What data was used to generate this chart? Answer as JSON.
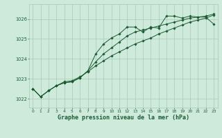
{
  "title": "Graphe pression niveau de la mer (hPa)",
  "bg_color": "#ceeadb",
  "grid_color": "#a8c8b8",
  "line_color": "#1a5c30",
  "x_ticks": [
    0,
    1,
    2,
    3,
    4,
    5,
    6,
    7,
    8,
    9,
    10,
    11,
    12,
    13,
    14,
    15,
    16,
    17,
    18,
    19,
    20,
    21,
    22,
    23
  ],
  "y_ticks": [
    1022,
    1023,
    1024,
    1025,
    1026
  ],
  "ylim": [
    1021.55,
    1026.75
  ],
  "xlim": [
    -0.5,
    23.5
  ],
  "series1": [
    1022.5,
    1022.1,
    1022.4,
    1022.65,
    1022.8,
    1022.85,
    1023.05,
    1023.4,
    1024.25,
    1024.75,
    1025.05,
    1025.25,
    1025.6,
    1025.6,
    1025.35,
    1025.6,
    1025.55,
    1026.15,
    1026.15,
    1026.05,
    1026.15,
    1026.1,
    1026.1,
    1025.75
  ],
  "series2": [
    1022.5,
    1022.1,
    1022.4,
    1022.65,
    1022.8,
    1022.85,
    1023.05,
    1023.4,
    1023.85,
    1024.25,
    1024.55,
    1024.85,
    1025.15,
    1025.35,
    1025.45,
    1025.55,
    1025.65,
    1025.75,
    1025.85,
    1025.95,
    1026.05,
    1026.1,
    1026.15,
    1026.25
  ],
  "series3": [
    1022.5,
    1022.1,
    1022.4,
    1022.65,
    1022.85,
    1022.9,
    1023.1,
    1023.35,
    1023.65,
    1023.9,
    1024.15,
    1024.35,
    1024.55,
    1024.75,
    1024.9,
    1025.05,
    1025.25,
    1025.4,
    1025.55,
    1025.7,
    1025.85,
    1025.95,
    1026.05,
    1026.2
  ]
}
